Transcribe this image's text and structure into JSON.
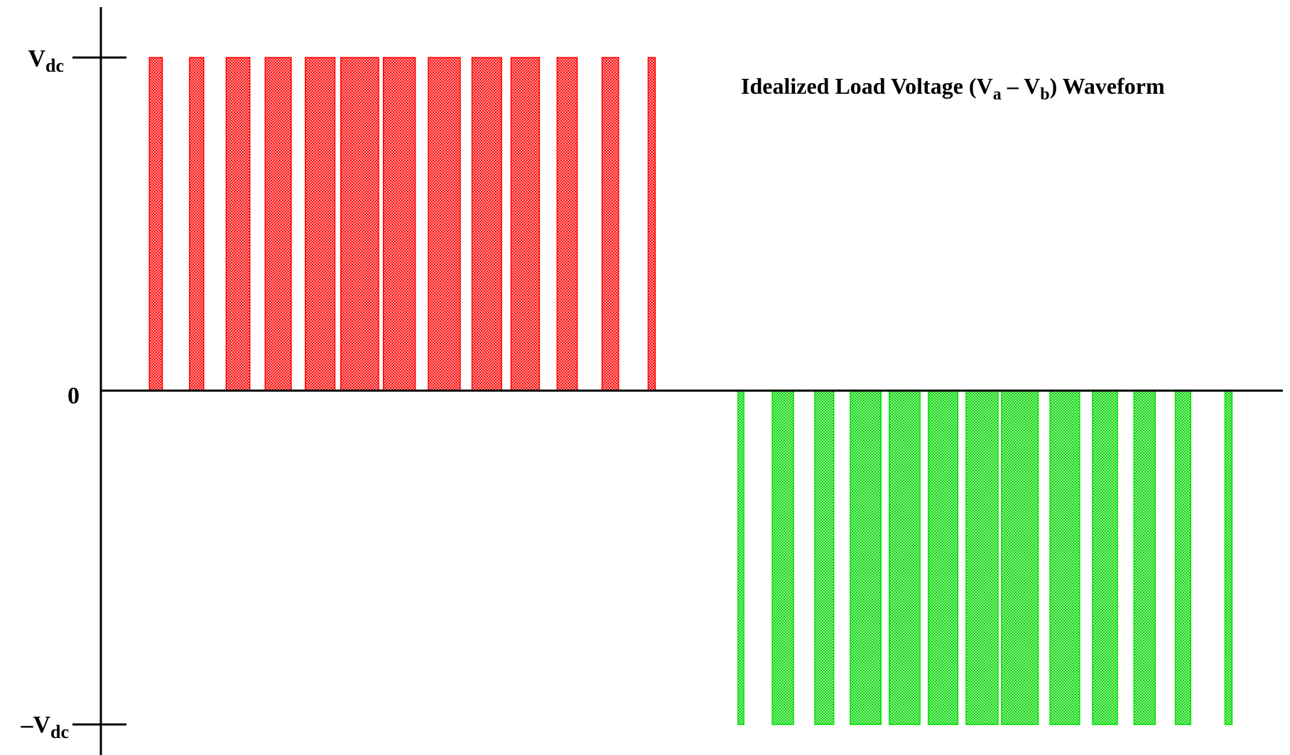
{
  "chart_data": {
    "type": "bar",
    "title": {
      "prefix": "Idealized Load Voltage (V",
      "sub_a": "a",
      "middle": " – V",
      "sub_b": "b",
      "suffix": ") Waveform"
    },
    "y_ticks": [
      {
        "value": 1,
        "base": "V",
        "sub": "dc",
        "prefix": ""
      },
      {
        "value": 0,
        "base": "0",
        "sub": "",
        "prefix": ""
      },
      {
        "value": -1,
        "base": "V",
        "sub": "dc",
        "prefix": "–"
      }
    ],
    "ylim": [
      -1,
      1
    ],
    "xlim": [
      0,
      100
    ],
    "grid": false,
    "legend": "none",
    "colors": {
      "positive": "#ff0000",
      "negative": "#00e000",
      "axis": "#000000"
    },
    "pulses": [
      {
        "start": 4.1,
        "end": 5.2,
        "value": 1
      },
      {
        "start": 7.5,
        "end": 8.7,
        "value": 1
      },
      {
        "start": 10.6,
        "end": 12.6,
        "value": 1
      },
      {
        "start": 13.9,
        "end": 16.1,
        "value": 1
      },
      {
        "start": 17.3,
        "end": 19.8,
        "value": 1
      },
      {
        "start": 20.3,
        "end": 23.5,
        "value": 1
      },
      {
        "start": 23.9,
        "end": 26.6,
        "value": 1
      },
      {
        "start": 27.7,
        "end": 30.4,
        "value": 1
      },
      {
        "start": 31.4,
        "end": 33.9,
        "value": 1
      },
      {
        "start": 34.7,
        "end": 37.1,
        "value": 1
      },
      {
        "start": 38.6,
        "end": 40.3,
        "value": 1
      },
      {
        "start": 42.4,
        "end": 43.8,
        "value": 1
      },
      {
        "start": 46.3,
        "end": 46.9,
        "value": 1
      },
      {
        "start": 53.9,
        "end": 54.4,
        "value": -1
      },
      {
        "start": 56.8,
        "end": 58.6,
        "value": -1
      },
      {
        "start": 60.4,
        "end": 62.0,
        "value": -1
      },
      {
        "start": 63.4,
        "end": 66.0,
        "value": -1
      },
      {
        "start": 66.7,
        "end": 69.3,
        "value": -1
      },
      {
        "start": 70.0,
        "end": 72.5,
        "value": -1
      },
      {
        "start": 73.2,
        "end": 75.9,
        "value": -1
      },
      {
        "start": 76.2,
        "end": 79.3,
        "value": -1
      },
      {
        "start": 80.3,
        "end": 82.8,
        "value": -1
      },
      {
        "start": 83.9,
        "end": 86.0,
        "value": -1
      },
      {
        "start": 87.4,
        "end": 89.2,
        "value": -1
      },
      {
        "start": 90.9,
        "end": 92.2,
        "value": -1
      },
      {
        "start": 95.1,
        "end": 95.7,
        "value": -1
      }
    ]
  }
}
